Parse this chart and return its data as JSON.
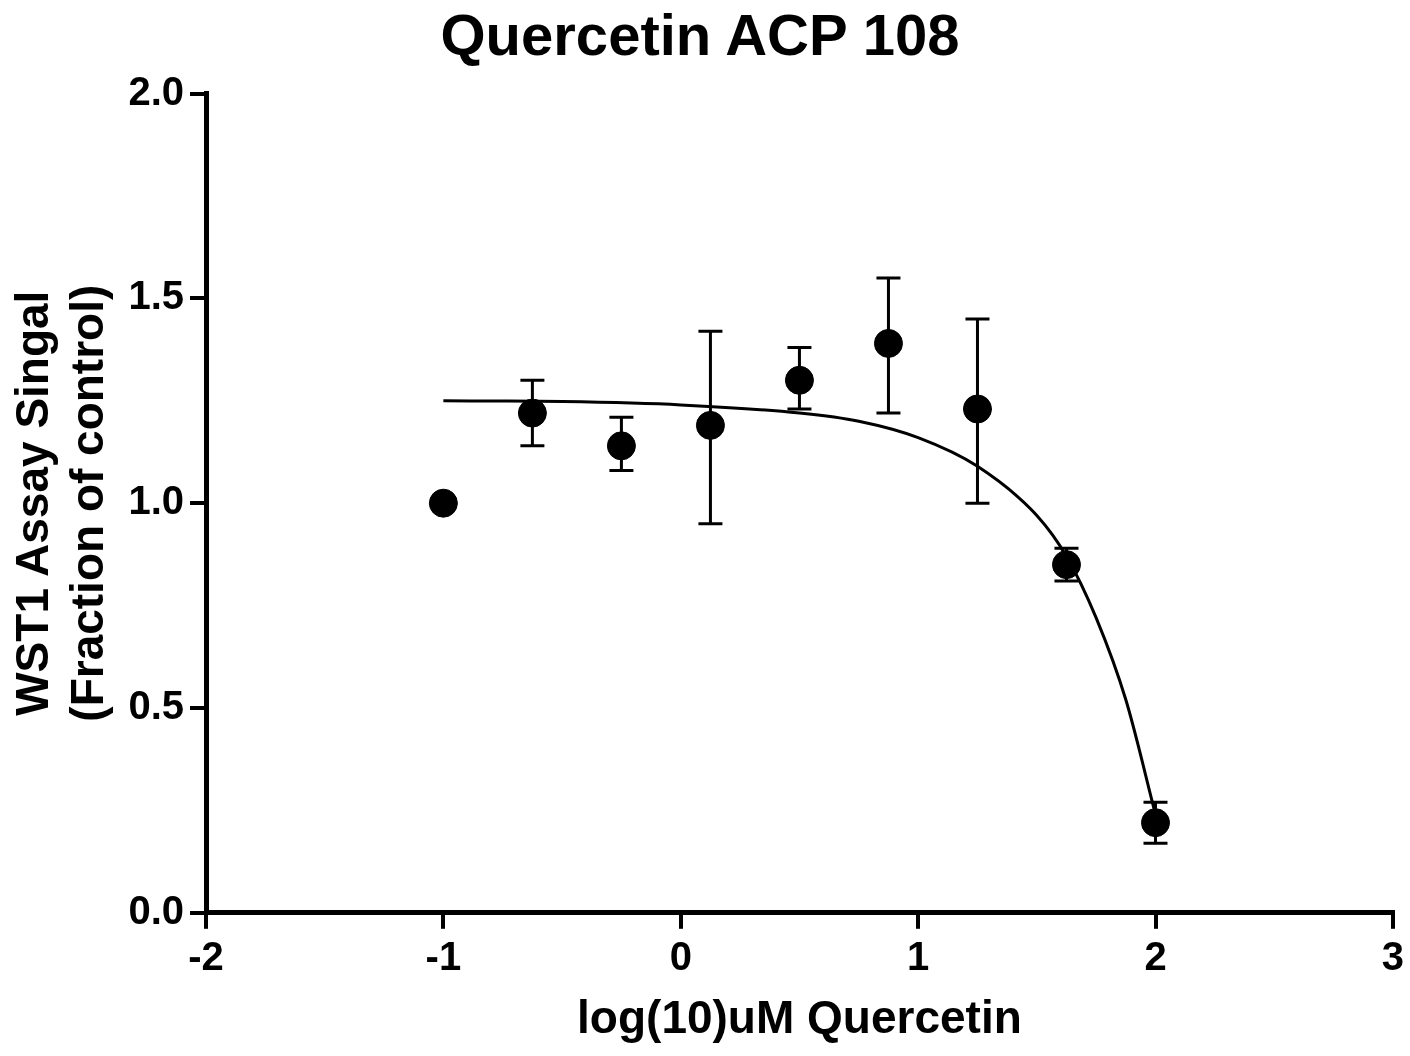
{
  "chart_data": {
    "type": "scatter",
    "title": "Quercetin ACP 108",
    "xlabel": "log(10)uM Quercetin",
    "ylabel": "WST1 Assay Singal\n(Fraction of control)",
    "xlim": [
      -2,
      3
    ],
    "xticks": [
      -2,
      -1,
      0,
      1,
      2,
      3
    ],
    "ylim": [
      0,
      2
    ],
    "yticks": [
      {
        "value": 0,
        "label": "0.0"
      },
      {
        "value": 0.5,
        "label": "0.5"
      },
      {
        "value": 1,
        "label": "1.0"
      },
      {
        "value": 1.5,
        "label": "1.5"
      },
      {
        "value": 2,
        "label": "2.0"
      }
    ],
    "grid": false,
    "legend": false,
    "series": [
      {
        "marker": "circle",
        "color": "#000000",
        "x": [
          -1,
          -0.625,
          -0.25,
          0.125,
          0.5,
          0.875,
          1.25,
          1.625,
          2
        ],
        "values": [
          1.0,
          1.22,
          1.14,
          1.19,
          1.3,
          1.39,
          1.23,
          0.85,
          0.22
        ],
        "errors": [
          null,
          [
            1.14,
            1.3
          ],
          [
            1.08,
            1.21
          ],
          [
            0.95,
            1.42
          ],
          [
            1.23,
            1.38
          ],
          [
            1.22,
            1.55
          ],
          [
            1.0,
            1.45
          ],
          [
            0.81,
            0.89
          ],
          [
            0.17,
            0.27
          ]
        ]
      },
      {
        "type": "line",
        "marker": "none",
        "color": "#000000",
        "line_style": "solid",
        "x": [
          -1,
          -0.5,
          0,
          0.5,
          0.75,
          1,
          1.25,
          1.5,
          1.625,
          1.75,
          1.875,
          2
        ],
        "values": [
          1.25,
          1.248,
          1.24,
          1.22,
          1.2,
          1.16,
          1.09,
          0.97,
          0.87,
          0.72,
          0.52,
          0.24
        ]
      }
    ]
  }
}
